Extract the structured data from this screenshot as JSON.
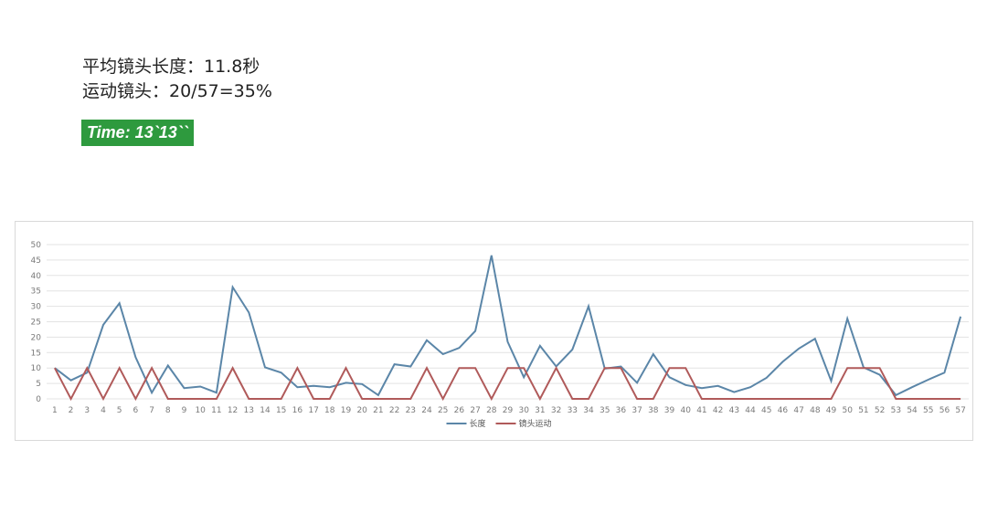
{
  "header": {
    "avg_shot_length": "平均镜头长度：11.8秒",
    "moving_shots": "运动镜头：20/57=35%",
    "time_badge": "Time: 13`13``"
  },
  "colors": {
    "badge_bg": "#2e9a3e",
    "series_length": "#5b86a8",
    "series_motion": "#b05a5a",
    "grid": "#e3e3e3"
  },
  "chart_data": {
    "type": "line",
    "title": "",
    "xlabel": "",
    "ylabel": "",
    "ylim": [
      0,
      50
    ],
    "yticks": [
      0,
      5,
      10,
      15,
      20,
      25,
      30,
      35,
      40,
      45,
      50
    ],
    "grid": true,
    "legend_position": "bottom",
    "categories": [
      "1",
      "2",
      "3",
      "4",
      "5",
      "6",
      "7",
      "8",
      "9",
      "10",
      "11",
      "12",
      "13",
      "14",
      "15",
      "16",
      "17",
      "18",
      "19",
      "20",
      "21",
      "22",
      "23",
      "24",
      "25",
      "26",
      "27",
      "28",
      "29",
      "30",
      "31",
      "32",
      "33",
      "34",
      "35",
      "36",
      "37",
      "38",
      "39",
      "40",
      "41",
      "42",
      "43",
      "44",
      "45",
      "46",
      "47",
      "48",
      "49",
      "50",
      "51",
      "52",
      "53",
      "54",
      "55",
      "56",
      "57"
    ],
    "series": [
      {
        "name": "长度",
        "color": "#5b86a8",
        "values": [
          10,
          6,
          8.5,
          24,
          31,
          13.5,
          2,
          10.8,
          3.5,
          4,
          2,
          36.2,
          28,
          10.2,
          8.5,
          3.8,
          4.2,
          3.8,
          5.2,
          4.8,
          1.2,
          11.2,
          10.5,
          19,
          14.5,
          16.5,
          22,
          46.5,
          18.5,
          7,
          17.2,
          10.5,
          16,
          30,
          9.8,
          10.5,
          5.2,
          14.5,
          7,
          4.5,
          3.5,
          4.2,
          2.2,
          3.8,
          6.8,
          12,
          16.3,
          19.5,
          5.8,
          26,
          10.2,
          7.8,
          1.2,
          3.8,
          6.2,
          8.5,
          26.7
        ]
      },
      {
        "name": "镜头运动",
        "color": "#b05a5a",
        "values": [
          10,
          0,
          10,
          0,
          10,
          0,
          10,
          0,
          0,
          0,
          0,
          10,
          0,
          0,
          0,
          10,
          0,
          0,
          10,
          0,
          0,
          0,
          0,
          10,
          0,
          10,
          10,
          0,
          10,
          10,
          0,
          10,
          0,
          0,
          10,
          10,
          0,
          0,
          10,
          10,
          0,
          0,
          0,
          0,
          0,
          0,
          0,
          0,
          0,
          10,
          10,
          10,
          0,
          0,
          0,
          0,
          0
        ]
      }
    ]
  }
}
